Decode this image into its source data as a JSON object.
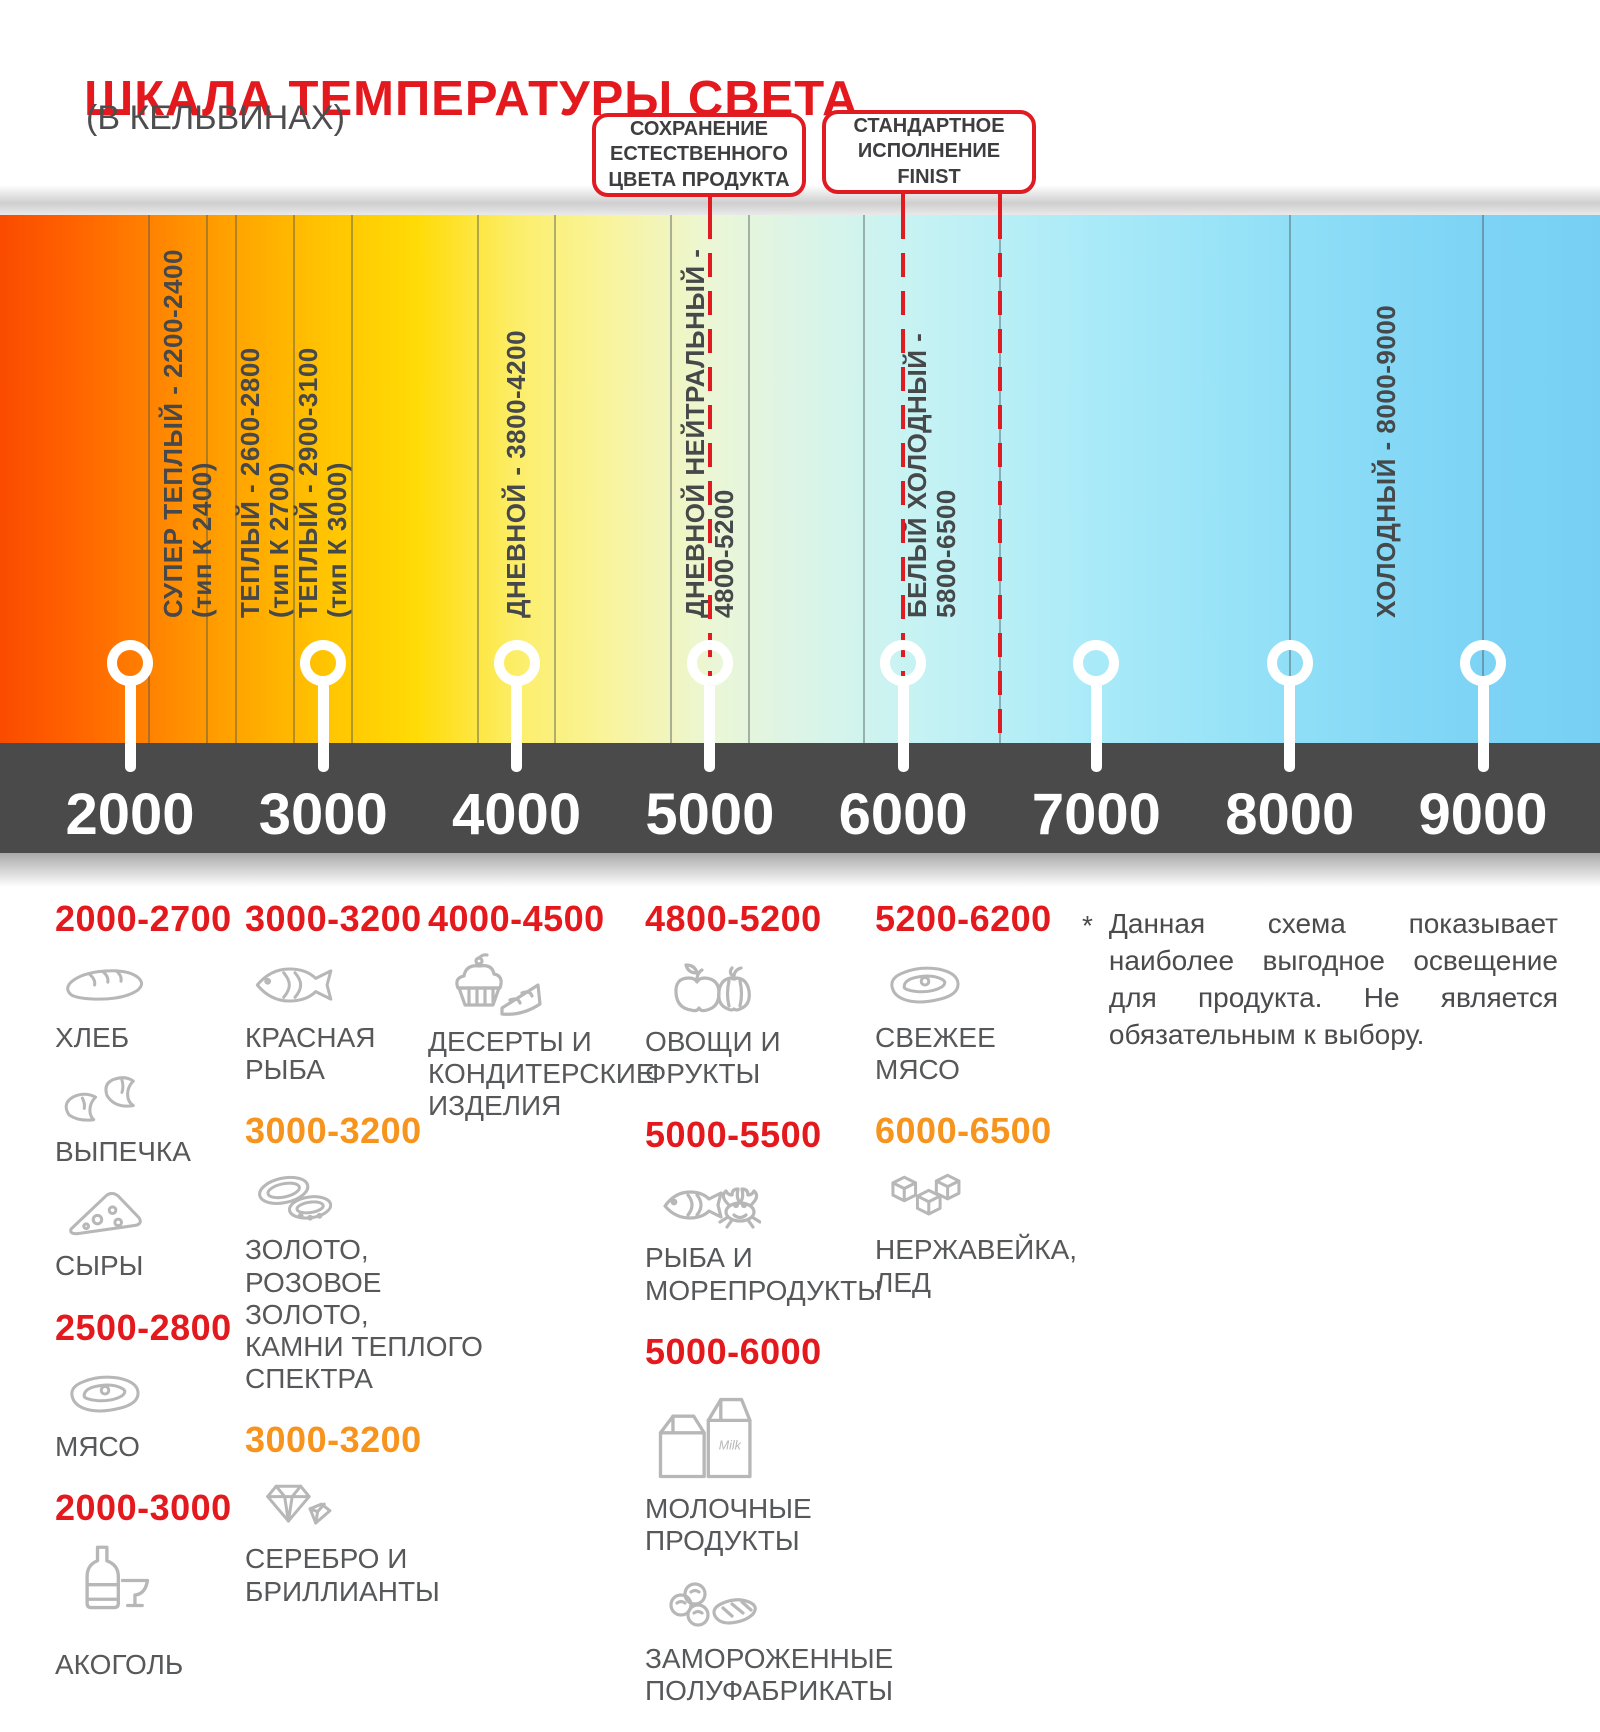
{
  "title": "ШКАЛА ТЕМПЕРАТУРЫ СВЕТА",
  "subtitle": "(В КЕЛЬВИНАХ)",
  "callouts": [
    {
      "id": "natural-color",
      "text": "СОХРАНЕНИЕ\nЕСТЕСТВЕННОГО\nЦВЕТА ПРОДУКТА",
      "line_k": [
        5000
      ]
    },
    {
      "id": "finist-standard",
      "text": "СТАНДАРТНОЕ\nИСПОЛНЕНИЕ\nFINIST",
      "line_k": [
        6000,
        6500
      ]
    }
  ],
  "scale": {
    "unit": "K",
    "min": 2000,
    "max": 9000,
    "ticks": [
      "2000",
      "3000",
      "4000",
      "5000",
      "6000",
      "7000",
      "8000",
      "9000"
    ],
    "grid_lines_k": [
      2100,
      2400,
      2550,
      2850,
      3150,
      3800,
      4200,
      4800,
      5200,
      5800,
      6500,
      8000,
      9000
    ],
    "red_dashed_lines_k": [
      5000,
      6000,
      6500
    ],
    "bands": [
      {
        "label": "СУПЕР ТЕПЛЫЙ - 2200-2400",
        "sub": "(тип К 2400)",
        "range": [
          2200,
          2400
        ]
      },
      {
        "label": "ТЕПЛЫЙ - 2600-2800",
        "sub": "(тип К 2700)",
        "range": [
          2600,
          2800
        ]
      },
      {
        "label": "ТЕПЛЫЙ - 2900-3100",
        "sub": "(тип К 3000)",
        "range": [
          2900,
          3100
        ]
      },
      {
        "label": "ДНЕВНОЙ - 3800-4200",
        "sub": "",
        "range": [
          3800,
          4200
        ]
      },
      {
        "label": "ДНЕВНОЙ НЕЙТРАЛЬНЫЙ -",
        "sub": "4800-5200",
        "range": [
          4800,
          5200
        ]
      },
      {
        "label": "БЕЛЫЙ ХОЛОДНЫЙ -",
        "sub": "5800-6500",
        "range": [
          5800,
          6500
        ]
      },
      {
        "label": "ХОЛОДНЫЙ - 8000-9000",
        "sub": "",
        "range": [
          8000,
          9000
        ]
      }
    ]
  },
  "legend": {
    "columns": [
      {
        "groups": [
          {
            "range": "2000-2700",
            "color": "red",
            "items": [
              {
                "icon": "bread-icon",
                "label": "ХЛЕБ"
              },
              {
                "icon": "croissant-icon",
                "label": "ВЫПЕЧКА"
              },
              {
                "icon": "cheese-icon",
                "label": "СЫРЫ"
              }
            ]
          },
          {
            "range": "2500-2800",
            "color": "red",
            "items": [
              {
                "icon": "meat-icon",
                "label": "МЯСО"
              }
            ]
          },
          {
            "range": "2000-3000",
            "color": "red",
            "items": [
              {
                "icon": "alcohol-icon",
                "label": "АКОГОЛЬ"
              }
            ]
          }
        ]
      },
      {
        "groups": [
          {
            "range": "3000-3200",
            "color": "red",
            "items": [
              {
                "icon": "fish-icon",
                "label": "КРАСНАЯ\nРЫБА"
              }
            ]
          },
          {
            "range": "3000-3200",
            "color": "orange",
            "items": [
              {
                "icon": "rings-icon",
                "label": "ЗОЛОТО,\nРОЗОВОЕ ЗОЛОТО,\nКАМНИ ТЕПЛОГО\nСПЕКТРА"
              }
            ]
          },
          {
            "range": "3000-3200",
            "color": "orange",
            "items": [
              {
                "icon": "diamond-icon",
                "label": "СЕРЕБРО И\nБРИЛЛИАНТЫ"
              }
            ]
          }
        ]
      },
      {
        "groups": [
          {
            "range": "4000-4500",
            "color": "red",
            "items": [
              {
                "icon": "dessert-icon",
                "label": "ДЕСЕРТЫ И\nКОНДИТЕРСКИЕ\nИЗДЕЛИЯ"
              }
            ]
          }
        ]
      },
      {
        "groups": [
          {
            "range": "4800-5200",
            "color": "red",
            "items": [
              {
                "icon": "vegetables-icon",
                "label": "ОВОЩИ И\nФРУКТЫ"
              }
            ]
          },
          {
            "range": "5000-5500",
            "color": "red",
            "items": [
              {
                "icon": "seafood-icon",
                "label": "РЫБА И\nМОРЕПРОДУКТЫ"
              }
            ]
          },
          {
            "range": "5000-6000",
            "color": "red",
            "items": [
              {
                "icon": "milk-icon",
                "label": "МОЛОЧНЫЕ ПРОДУКТЫ"
              },
              {
                "icon": "frozen-icon",
                "label": "ЗАМОРОЖЕННЫЕ\nПОЛУФАБРИКАТЫ"
              }
            ]
          }
        ]
      },
      {
        "groups": [
          {
            "range": "5200-6200",
            "color": "red",
            "items": [
              {
                "icon": "meat-icon",
                "label": "СВЕЖЕЕ\nМЯСО"
              }
            ]
          },
          {
            "range": "6000-6500",
            "color": "orange",
            "items": [
              {
                "icon": "ice-icon",
                "label": "НЕРЖАВЕЙКА,\nЛЕД"
              }
            ]
          }
        ]
      }
    ]
  },
  "footnote": {
    "marker": "*",
    "text": "Данная схема показывает наиболее выгодное освещение для продукта. Не является обязательным к выбору."
  },
  "colors": {
    "accent_red": "#e3191d",
    "accent_orange": "#f7941d",
    "axis_bar": "#4a4a4b",
    "text_dark": "#4d4d4f",
    "icon_gray": "#b7b7b7"
  }
}
